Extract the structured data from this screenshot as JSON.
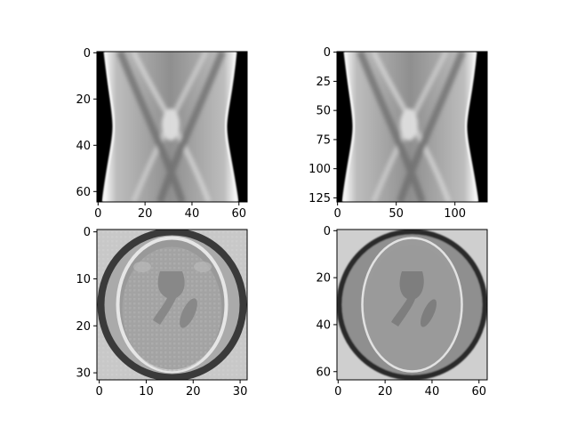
{
  "figure": {
    "background": "#ffffff",
    "layout": "2x2 grid of grayscale images"
  },
  "chart_data": [
    {
      "type": "heatmap",
      "subject": "sinogram",
      "colormap": "gray",
      "xlim": [
        -0.5,
        63.5
      ],
      "ylim": [
        64.5,
        -0.5
      ],
      "xticks": [
        0,
        20,
        40,
        60
      ],
      "yticks": [
        0,
        20,
        40,
        60
      ],
      "xticklabels": [
        "0",
        "20",
        "40",
        "60"
      ],
      "yticklabels": [
        "0",
        "20",
        "40",
        "60"
      ]
    },
    {
      "type": "heatmap",
      "subject": "sinogram",
      "colormap": "gray",
      "xlim": [
        -0.5,
        127.5
      ],
      "ylim": [
        128.5,
        -0.5
      ],
      "xticks": [
        0,
        50,
        100
      ],
      "yticks": [
        0,
        25,
        50,
        75,
        100,
        125
      ],
      "xticklabels": [
        "0",
        "50",
        "100"
      ],
      "yticklabels": [
        "0",
        "25",
        "50",
        "75",
        "100",
        "125"
      ]
    },
    {
      "type": "heatmap",
      "subject": "reconstruction",
      "colormap": "gray",
      "xlim": [
        -0.5,
        31.5
      ],
      "ylim": [
        31.5,
        -0.5
      ],
      "xticks": [
        0,
        10,
        20,
        30
      ],
      "yticks": [
        0,
        10,
        20,
        30
      ],
      "xticklabels": [
        "0",
        "10",
        "20",
        "30"
      ],
      "yticklabels": [
        "0",
        "10",
        "20",
        "30"
      ]
    },
    {
      "type": "heatmap",
      "subject": "reconstruction",
      "colormap": "gray",
      "xlim": [
        -0.5,
        63.5
      ],
      "ylim": [
        63.5,
        -0.5
      ],
      "xticks": [
        0,
        20,
        40,
        60
      ],
      "yticks": [
        0,
        20,
        40,
        60
      ],
      "xticklabels": [
        "0",
        "20",
        "40",
        "60"
      ],
      "yticklabels": [
        "0",
        "20",
        "40",
        "60"
      ]
    }
  ]
}
